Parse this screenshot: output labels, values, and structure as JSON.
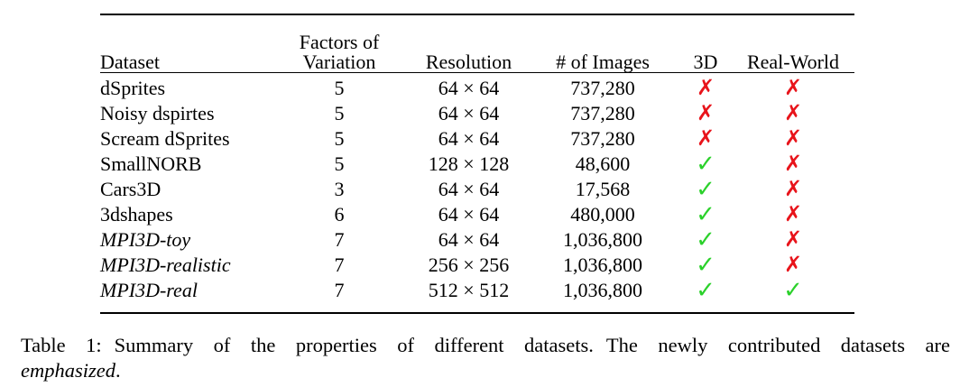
{
  "table": {
    "headers": {
      "dataset": "Dataset",
      "factors_line1": "Factors of",
      "factors_line2": "Variation",
      "resolution": "Resolution",
      "num_images": "# of Images",
      "three_d": "3D",
      "real_world": "Real-World"
    },
    "rows": [
      {
        "name": "dSprites",
        "factors": "5",
        "resolution": "64 × 64",
        "images": "737,280",
        "three_d": "✗",
        "real_world": "✗"
      },
      {
        "name": "Noisy dspirtes",
        "factors": "5",
        "resolution": "64 × 64",
        "images": "737,280",
        "three_d": "✗",
        "real_world": "✗"
      },
      {
        "name": "Scream dSprites",
        "factors": "5",
        "resolution": "64 × 64",
        "images": "737,280",
        "three_d": "✗",
        "real_world": "✗"
      },
      {
        "name": "SmallNORB",
        "factors": "5",
        "resolution": "128 × 128",
        "images": "48,600",
        "three_d": "✓",
        "real_world": "✗"
      },
      {
        "name": "Cars3D",
        "factors": "3",
        "resolution": "64 × 64",
        "images": "17,568",
        "three_d": "✓",
        "real_world": "✗"
      },
      {
        "name": "3dshapes",
        "factors": "6",
        "resolution": "64 × 64",
        "images": "480,000",
        "three_d": "✓",
        "real_world": "✗"
      },
      {
        "name": "MPI3D-toy",
        "factors": "7",
        "resolution": "64 × 64",
        "images": "1,036,800",
        "three_d": "✓",
        "real_world": "✗"
      },
      {
        "name": "MPI3D-realistic",
        "factors": "7",
        "resolution": "256 × 256",
        "images": "1,036,800",
        "three_d": "✓",
        "real_world": "✗"
      },
      {
        "name": "MPI3D-real",
        "factors": "7",
        "resolution": "512 × 512",
        "images": "1,036,800",
        "three_d": "✓",
        "real_world": "✓"
      }
    ]
  },
  "caption": {
    "label": "Table 1:",
    "text": "Summary of the properties of different datasets.",
    "text2": "The newly contributed datasets are",
    "emphasized": "emphasized",
    "end": "."
  },
  "colors": {
    "cross": "#e8141b",
    "check": "#2bd12b"
  }
}
